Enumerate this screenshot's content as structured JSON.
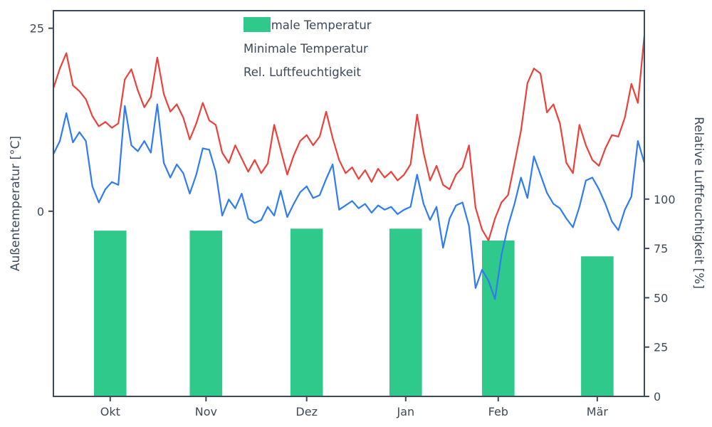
{
  "chart_data": {
    "type": "line+bar",
    "title": "",
    "text_color": "#3d4a5a",
    "axis_color": "#3d4a5a",
    "background_color": "#ffffff",
    "x_tick_labels": [
      "Okt",
      "Nov",
      "Dez",
      "Jan",
      "Feb",
      "Mär"
    ],
    "x_tick_positions_days": [
      17.5,
      47,
      78,
      108.5,
      137,
      167.5
    ],
    "x_range_days": [
      0,
      182
    ],
    "left_axis": {
      "label": "Außentemperatur [°C]",
      "unit": "°C",
      "ticks": [
        0,
        25
      ],
      "range": [
        -25.3,
        27.4
      ]
    },
    "right_axis": {
      "label": "Relative Luftfeuchtigkeit [%]",
      "unit": "%",
      "ticks": [
        0,
        25,
        50,
        75,
        100
      ],
      "range": [
        0,
        195.5
      ]
    },
    "grid": false,
    "legend": {
      "position": "upper center",
      "entries": [
        "Maximale Temperatur",
        "Minimale Temperatur",
        "Rel. Luftfeuchtigkeit"
      ]
    },
    "x_days": [
      0,
      2,
      4,
      6,
      8,
      10,
      12,
      14,
      16,
      18,
      20,
      22,
      24,
      26,
      28,
      30,
      32,
      34,
      36,
      38,
      40,
      42,
      44,
      46,
      48,
      50,
      52,
      54,
      56,
      58,
      60,
      62,
      64,
      66,
      68,
      70,
      72,
      74,
      76,
      78,
      80,
      82,
      84,
      86,
      88,
      90,
      92,
      94,
      96,
      98,
      100,
      102,
      104,
      106,
      108,
      110,
      112,
      114,
      116,
      118,
      120,
      122,
      124,
      126,
      128,
      130,
      132,
      134,
      136,
      138,
      140,
      142,
      144,
      146,
      148,
      150,
      152,
      154,
      156,
      158,
      160,
      162,
      164,
      166,
      168,
      170,
      172,
      174,
      176,
      178,
      180,
      182
    ],
    "series": [
      {
        "name": "Maximale Temperatur",
        "id": "max-temp",
        "type": "line",
        "axis": "left",
        "color": "#e9413c",
        "values": [
          16.8,
          19.5,
          21.6,
          17.2,
          16.4,
          15.3,
          13.0,
          11.6,
          12.2,
          11.4,
          12.0,
          18.0,
          19.4,
          16.5,
          14.2,
          15.6,
          21.0,
          16.0,
          13.6,
          14.6,
          12.8,
          9.8,
          12.0,
          14.8,
          12.4,
          11.8,
          8.0,
          6.6,
          9.0,
          7.2,
          5.4,
          7.0,
          5.2,
          6.5,
          11.8,
          8.4,
          5.0,
          7.6,
          9.6,
          10.4,
          9.0,
          10.2,
          13.6,
          10.0,
          7.0,
          5.2,
          6.0,
          4.4,
          5.6,
          4.0,
          5.8,
          4.6,
          5.4,
          4.2,
          5.0,
          6.4,
          13.2,
          8.0,
          4.2,
          6.2,
          3.6,
          3.0,
          5.0,
          6.0,
          9.0,
          0.5,
          -2.5,
          -4.0,
          -1.0,
          1.2,
          2.2,
          6.5,
          11.0,
          17.5,
          19.5,
          18.8,
          13.5,
          14.6,
          12.0,
          6.6,
          5.2,
          11.8,
          9.0,
          7.0,
          6.2,
          8.6,
          10.4,
          10.2,
          12.8,
          17.4,
          14.8,
          24.0
        ]
      },
      {
        "name": "Minimale Temperatur",
        "id": "min-temp",
        "type": "line",
        "axis": "left",
        "color": "#2e7cf0",
        "values": [
          7.8,
          9.6,
          13.4,
          9.4,
          10.8,
          9.6,
          3.4,
          1.2,
          3.0,
          4.0,
          3.6,
          14.4,
          9.0,
          8.2,
          9.6,
          8.0,
          14.6,
          6.6,
          4.6,
          6.4,
          5.2,
          2.4,
          5.0,
          8.6,
          8.4,
          5.4,
          -0.6,
          1.6,
          0.4,
          2.4,
          -1.0,
          -1.6,
          -1.2,
          0.6,
          -0.6,
          2.8,
          -0.8,
          1.0,
          2.6,
          3.4,
          1.8,
          2.2,
          4.4,
          6.4,
          0.2,
          0.8,
          1.4,
          0.4,
          1.0,
          -0.2,
          0.8,
          0.2,
          0.6,
          -0.4,
          0.2,
          0.6,
          5.0,
          1.0,
          -1.2,
          0.6,
          -5.0,
          -1.0,
          0.8,
          1.2,
          -2.0,
          -10.5,
          -8.0,
          -9.5,
          -12.0,
          -6.0,
          -2.0,
          1.0,
          4.6,
          1.8,
          7.5,
          5.0,
          2.5,
          1.0,
          0.4,
          -1.0,
          -2.2,
          0.6,
          4.2,
          4.6,
          3.0,
          1.0,
          -1.4,
          -2.6,
          0.2,
          2.0,
          9.6,
          6.6
        ]
      },
      {
        "name": "Rel. Luftfeuchtigkeit",
        "id": "humidity",
        "type": "bar",
        "axis": "right",
        "color": "#2fc98c",
        "bar_width_days": 10,
        "x_days": [
          17.5,
          47,
          78,
          108.5,
          137,
          167.5
        ],
        "categories": [
          "Okt",
          "Nov",
          "Dez",
          "Jan",
          "Feb",
          "Mär"
        ],
        "values": [
          84,
          84,
          85,
          85,
          79,
          71
        ]
      }
    ]
  }
}
